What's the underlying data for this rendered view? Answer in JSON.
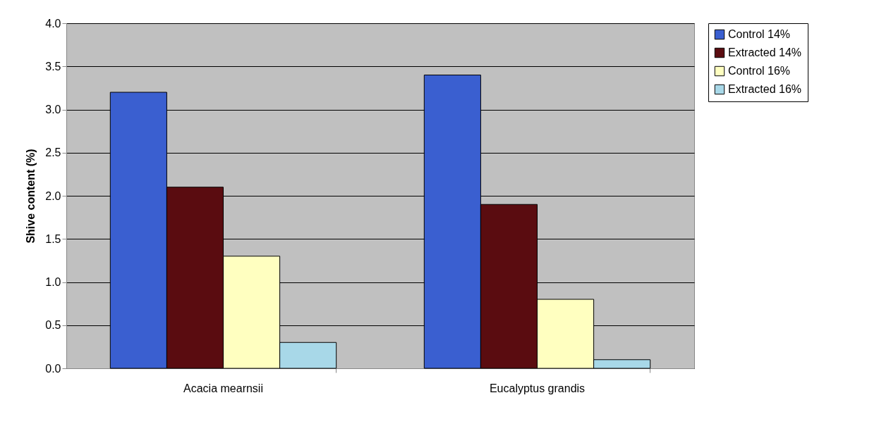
{
  "chart_data": {
    "type": "bar",
    "ylabel": "Shive content (%)",
    "categories": [
      "Acacia mearnsii",
      "Eucalyptus grandis"
    ],
    "series": [
      {
        "name": "Control 14%",
        "color": "#3a5fd0",
        "values": [
          3.2,
          3.4
        ]
      },
      {
        "name": "Extracted 14%",
        "color": "#5a0c10",
        "values": [
          2.1,
          1.9
        ]
      },
      {
        "name": "Control 16%",
        "color": "#ffffc0",
        "values": [
          1.3,
          0.8
        ]
      },
      {
        "name": "Extracted 16%",
        "color": "#a8d8e8",
        "values": [
          0.3,
          0.1
        ]
      }
    ],
    "ylim": [
      0,
      4
    ],
    "yticks": [
      {
        "value": 0,
        "label": "0.0"
      },
      {
        "value": 0.5,
        "label": "0.5"
      },
      {
        "value": 1,
        "label": "1.0"
      },
      {
        "value": 1.5,
        "label": "1.5"
      },
      {
        "value": 2,
        "label": "2.0"
      },
      {
        "value": 2.5,
        "label": "2.5"
      },
      {
        "value": 3,
        "label": "3.0"
      },
      {
        "value": 3.5,
        "label": "3.5"
      },
      {
        "value": 4,
        "label": "4.0"
      }
    ],
    "grid": "y",
    "legend": "right"
  }
}
